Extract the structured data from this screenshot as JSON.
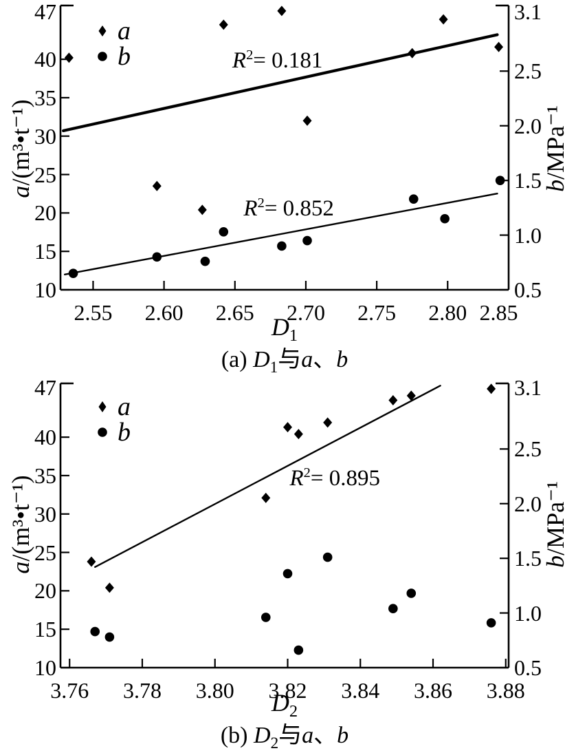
{
  "figure": {
    "background": "#ffffff",
    "ink_color": "#000000",
    "panel_count": 2
  },
  "chart_data": [
    {
      "panel": "a",
      "type": "scatter",
      "caption": {
        "index": "(a) ",
        "var": "D",
        "sub": "1",
        "connector": "与",
        "s1": "a",
        "enum_comma": "、",
        "s2": "b"
      },
      "xlabel": {
        "var": "D",
        "sub": "1"
      },
      "ylabel_left": {
        "var": "a",
        "rest": "/(m³•t⁻¹)"
      },
      "ylabel_right": {
        "var": "b",
        "rest": "/MPa⁻¹"
      },
      "xlim": [
        2.527,
        2.843
      ],
      "ylim_left": [
        10,
        47
      ],
      "ylim_right": [
        0.5,
        3.1
      ],
      "grid": false,
      "legend_position": "top-left-inside",
      "x_ticks": [
        {
          "v": 2.55,
          "label": "2.55",
          "mark": true
        },
        {
          "v": 2.6,
          "label": "2.60",
          "mark": true
        },
        {
          "v": 2.65,
          "label": "2.65",
          "mark": true
        },
        {
          "v": 2.7,
          "label": "2.70",
          "mark": true
        },
        {
          "v": 2.75,
          "label": "2.75",
          "mark": true
        },
        {
          "v": 2.8,
          "label": "2.80",
          "mark": true
        },
        {
          "v": 2.836,
          "label": "2.85",
          "mark": false
        }
      ],
      "y_ticks_left": [
        {
          "v": 47,
          "label": "47"
        },
        {
          "v": 40,
          "label": "40"
        },
        {
          "v": 35,
          "label": "35"
        },
        {
          "v": 30,
          "label": "30"
        },
        {
          "v": 25,
          "label": "25"
        },
        {
          "v": 20,
          "label": "20"
        },
        {
          "v": 15,
          "label": "15"
        },
        {
          "v": 10,
          "label": "10"
        }
      ],
      "y_ticks_right": [
        {
          "v": 3.1,
          "label": "3.1"
        },
        {
          "v": 2.5,
          "label": "2.5"
        },
        {
          "v": 2.0,
          "label": "2.0"
        },
        {
          "v": 1.5,
          "label": "1.5"
        },
        {
          "v": 1.0,
          "label": "1.0"
        },
        {
          "v": 0.5,
          "label": "0.5"
        }
      ],
      "legend": {
        "items": [
          {
            "marker": "diamond",
            "label": "a"
          },
          {
            "marker": "circle",
            "label": "b"
          }
        ]
      },
      "series": [
        {
          "name": "a",
          "marker": "diamond",
          "axis": "left",
          "points": [
            [
              2.533,
              40.2
            ],
            [
              2.595,
              23.5
            ],
            [
              2.627,
              20.4
            ],
            [
              2.642,
              44.5
            ],
            [
              2.683,
              46.3
            ],
            [
              2.701,
              32.0
            ],
            [
              2.775,
              40.8
            ],
            [
              2.797,
              45.2
            ],
            [
              2.836,
              41.6
            ]
          ]
        },
        {
          "name": "b",
          "marker": "circle",
          "axis": "right",
          "points": [
            [
              2.536,
              0.65
            ],
            [
              2.595,
              0.8
            ],
            [
              2.629,
              0.76
            ],
            [
              2.642,
              1.03
            ],
            [
              2.683,
              0.9
            ],
            [
              2.701,
              0.95
            ],
            [
              2.776,
              1.33
            ],
            [
              2.798,
              1.15
            ],
            [
              2.837,
              1.5
            ]
          ]
        }
      ],
      "trend_lines": [
        {
          "for_series": "a",
          "axis": "left",
          "from": [
            2.529,
            30.7
          ],
          "to": [
            2.835,
            43.2
          ],
          "thick": true,
          "r2": {
            "r": "R",
            "sup": "2",
            "value": "= 0.181"
          },
          "label_at": [
            2.68,
            39.8
          ]
        },
        {
          "for_series": "b",
          "axis": "right",
          "from": [
            2.53,
            0.64
          ],
          "to": [
            2.835,
            1.38
          ],
          "thick": false,
          "r2": {
            "r": "R",
            "sup": "2",
            "value": "= 0.852"
          },
          "label_at": [
            2.688,
            1.24
          ]
        }
      ]
    },
    {
      "panel": "b",
      "type": "scatter",
      "caption": {
        "index": "(b) ",
        "var": "D",
        "sub": "2",
        "connector": "与",
        "s1": "a",
        "enum_comma": "、",
        "s2": "b"
      },
      "xlabel": {
        "var": "D",
        "sub": "2"
      },
      "ylabel_left": {
        "var": "a",
        "rest": "/(m³•t⁻¹)"
      },
      "ylabel_right": {
        "var": "b",
        "rest": "/MPa⁻¹"
      },
      "xlim": [
        3.7575,
        3.8808
      ],
      "ylim_left": [
        10,
        47
      ],
      "ylim_right": [
        0.5,
        3.1
      ],
      "grid": false,
      "legend_position": "top-left-inside",
      "x_ticks": [
        {
          "v": 3.76,
          "label": "3.76",
          "mark": true
        },
        {
          "v": 3.78,
          "label": "3.78",
          "mark": true
        },
        {
          "v": 3.8,
          "label": "3.80",
          "mark": true
        },
        {
          "v": 3.82,
          "label": "3.82",
          "mark": true
        },
        {
          "v": 3.84,
          "label": "3.84",
          "mark": true
        },
        {
          "v": 3.86,
          "label": "3.86",
          "mark": true
        },
        {
          "v": 3.88,
          "label": "3.88",
          "mark": true
        }
      ],
      "y_ticks_left": [
        {
          "v": 47,
          "label": "47"
        },
        {
          "v": 40,
          "label": "40"
        },
        {
          "v": 35,
          "label": "35"
        },
        {
          "v": 30,
          "label": "30"
        },
        {
          "v": 25,
          "label": "25"
        },
        {
          "v": 20,
          "label": "20"
        },
        {
          "v": 15,
          "label": "15"
        },
        {
          "v": 10,
          "label": "10"
        }
      ],
      "y_ticks_right": [
        {
          "v": 3.1,
          "label": "3.1"
        },
        {
          "v": 2.5,
          "label": "2.5"
        },
        {
          "v": 2.0,
          "label": "2.0"
        },
        {
          "v": 1.5,
          "label": "1.5"
        },
        {
          "v": 1.0,
          "label": "1.0"
        },
        {
          "v": 0.5,
          "label": "0.5"
        }
      ],
      "legend": {
        "items": [
          {
            "marker": "diamond",
            "label": "a"
          },
          {
            "marker": "circle",
            "label": "b"
          }
        ]
      },
      "series": [
        {
          "name": "a",
          "marker": "diamond",
          "axis": "left",
          "points": [
            [
              3.766,
              23.8
            ],
            [
              3.771,
              20.4
            ],
            [
              3.814,
              32.1
            ],
            [
              3.82,
              41.3
            ],
            [
              3.823,
              40.4
            ],
            [
              3.831,
              41.9
            ],
            [
              3.849,
              44.8
            ],
            [
              3.854,
              45.4
            ],
            [
              3.876,
              46.3
            ]
          ]
        },
        {
          "name": "b",
          "marker": "circle",
          "axis": "right",
          "points": [
            [
              3.767,
              0.83
            ],
            [
              3.771,
              0.78
            ],
            [
              3.814,
              0.96
            ],
            [
              3.82,
              1.36
            ],
            [
              3.823,
              0.66
            ],
            [
              3.831,
              1.51
            ],
            [
              3.849,
              1.04
            ],
            [
              3.854,
              1.18
            ],
            [
              3.876,
              0.91
            ]
          ]
        }
      ],
      "trend_lines": [
        {
          "for_series": "a",
          "axis": "left",
          "from": [
            3.767,
            23.1
          ],
          "to": [
            3.862,
            46.7
          ],
          "thick": false,
          "r2": {
            "r": "R",
            "sup": "2",
            "value": "= 0.895"
          },
          "label_at": [
            3.833,
            34.6
          ]
        }
      ]
    }
  ]
}
